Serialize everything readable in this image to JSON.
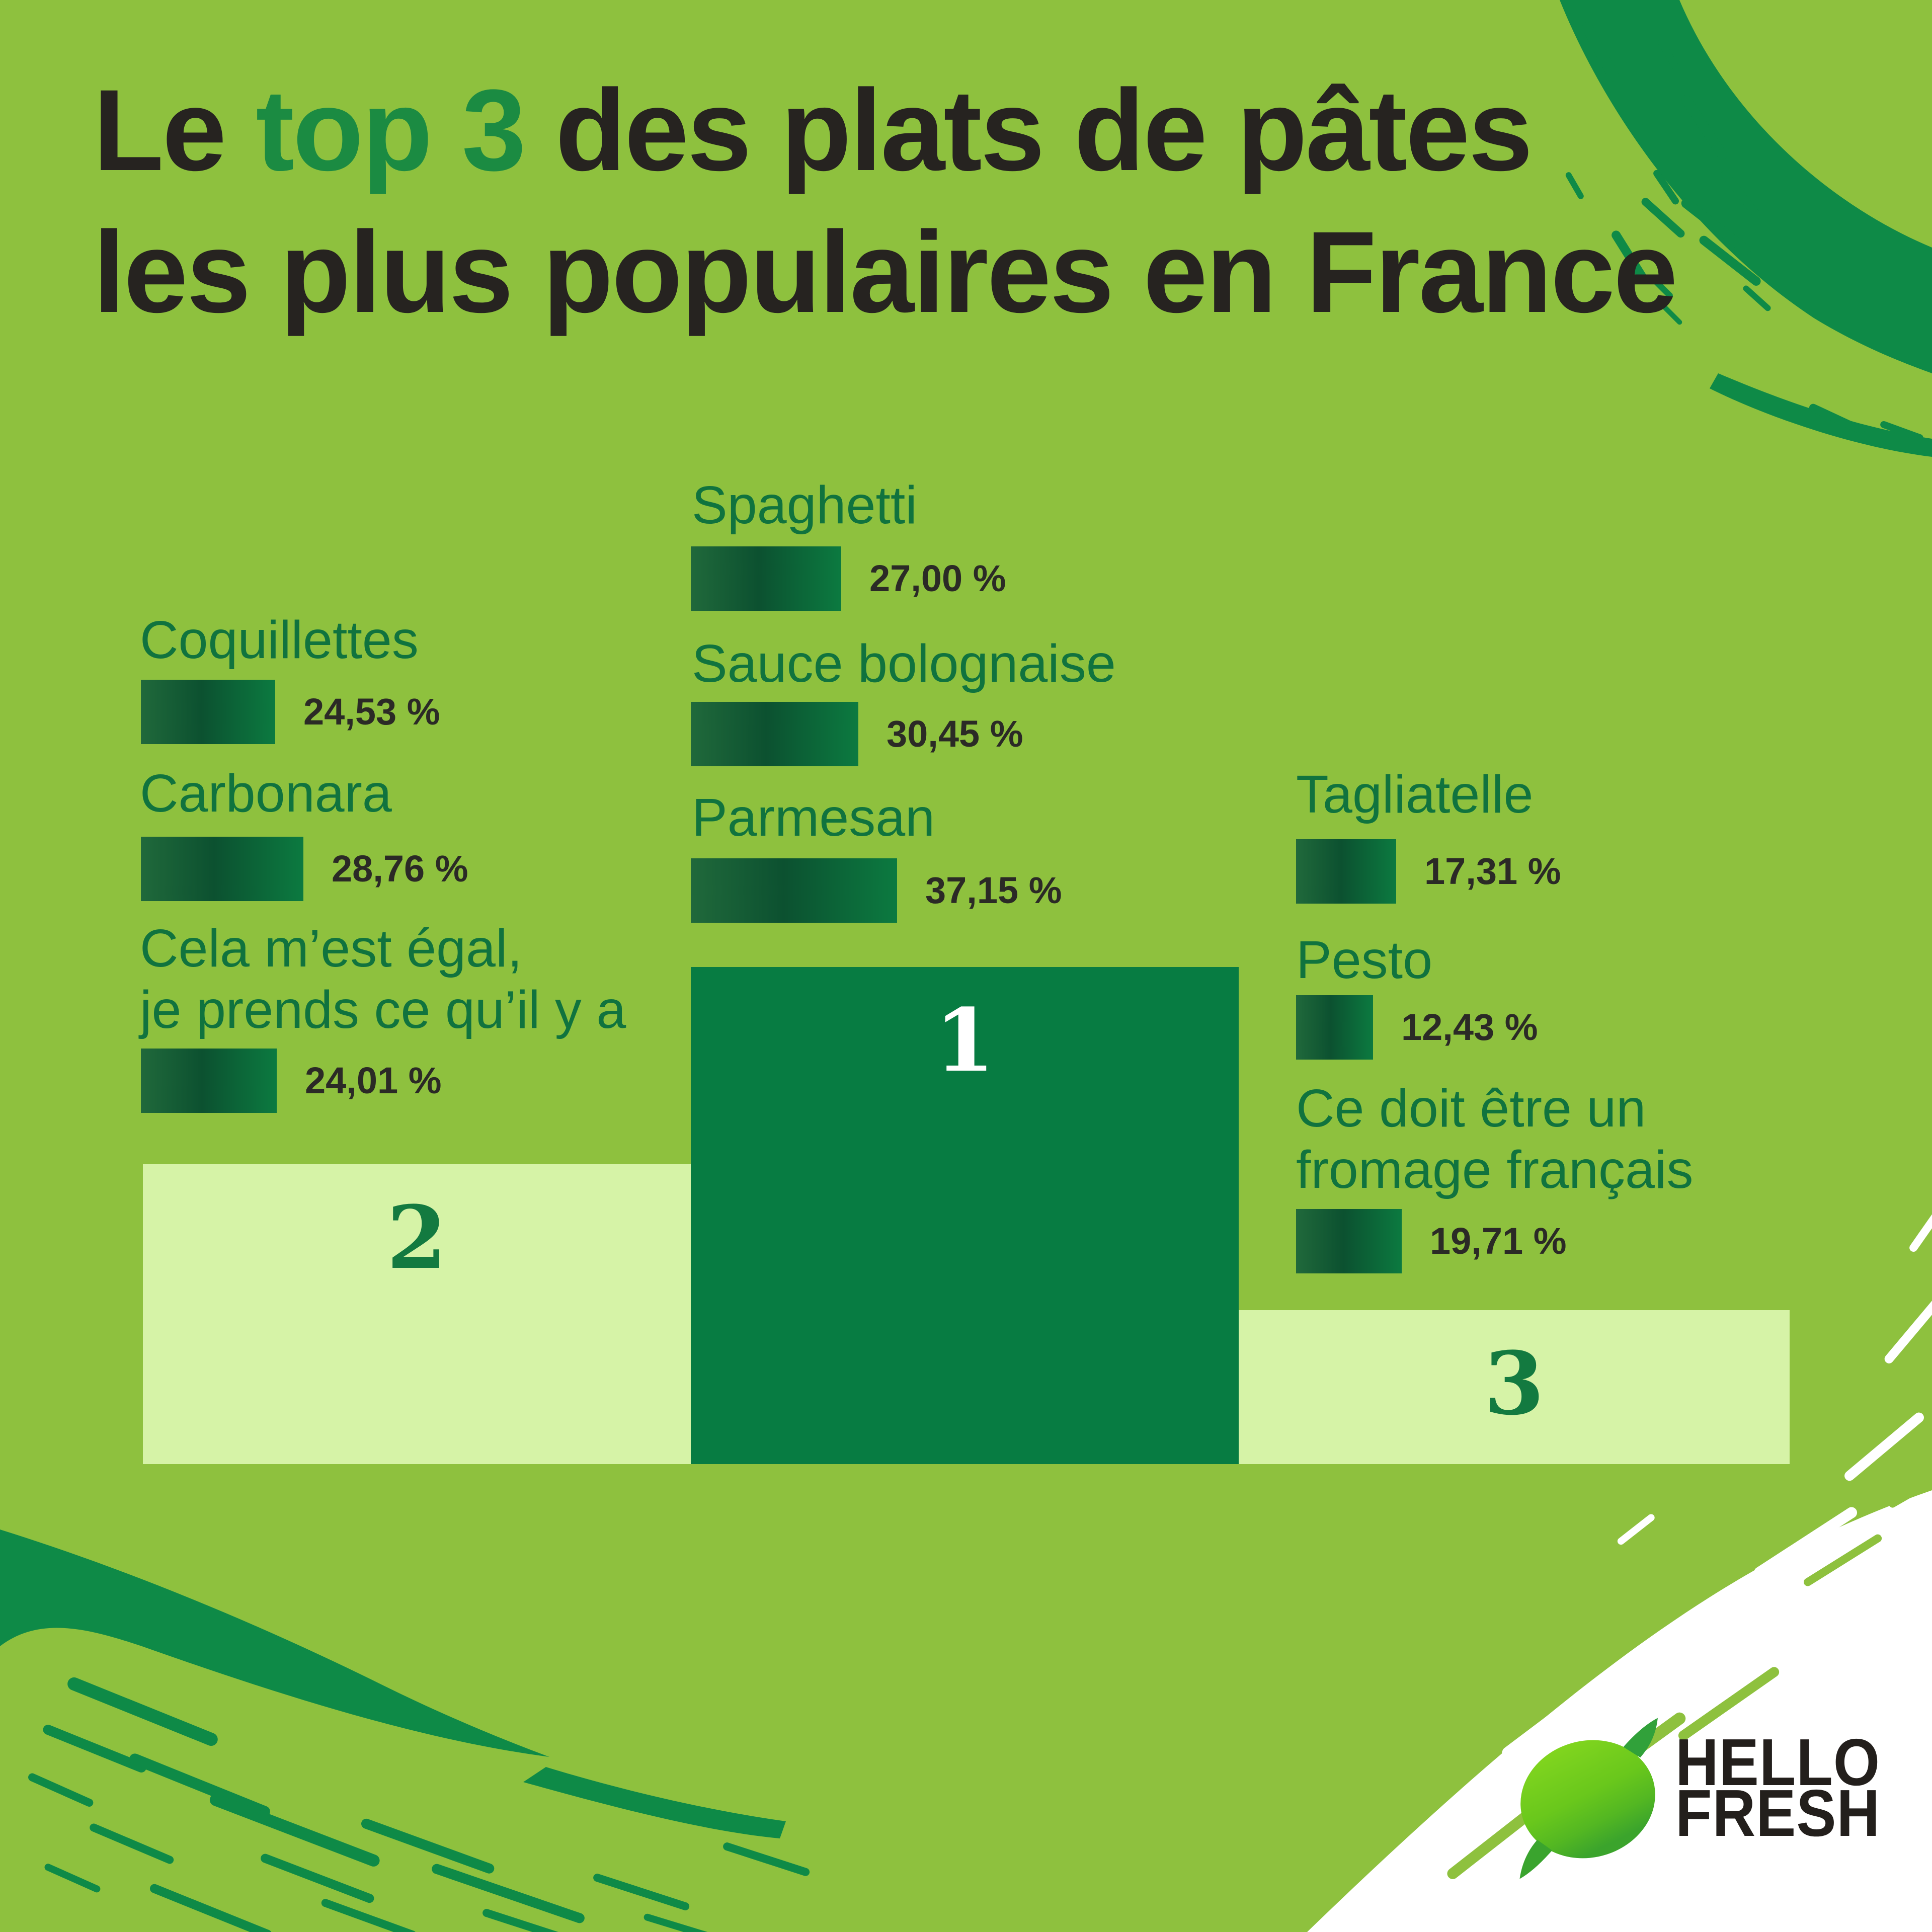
{
  "title": {
    "line1_prefix": "Le ",
    "line1_accent": "top 3",
    "line1_suffix": " des plats de pâtes",
    "line2": "les plus populaires en France"
  },
  "logo": {
    "brand_line1": "HELLO",
    "brand_line2": "FRESH",
    "icon": "lime-icon"
  },
  "colors": {
    "background": "#8ec13e",
    "brush_dark_green": "#0e8a47",
    "podium_first": "#077c42",
    "podium_light": "#d6f3a7",
    "label_green": "#10733e",
    "title_accent_green": "#1b8b42",
    "text_dark": "#2b2a26",
    "bar_gradient": [
      "#20693b",
      "#0c5130",
      "#0c7a40"
    ],
    "white_corner": "#ffffff"
  },
  "chart_data": {
    "type": "bar",
    "title": "Le top 3 des plats de pâtes les plus populaires en France",
    "unit": "%",
    "layout_hint": "three podium columns (ranks 2,1,3) each with three horizontal mini-bars; bar length proportional to value",
    "groups": [
      {
        "rank_label": "2",
        "podium_style": "light",
        "items": [
          {
            "label": "Coquillettes",
            "value": 24.53,
            "value_display": "24,53 %"
          },
          {
            "label": "Carbonara",
            "value": 28.76,
            "value_display": "28,76 %"
          },
          {
            "label": "Cela m’est égal,\nje prends ce qu’il y a",
            "value": 24.01,
            "value_display": "24,01 %"
          }
        ]
      },
      {
        "rank_label": "1",
        "podium_style": "dark",
        "items": [
          {
            "label": "Spaghetti",
            "value": 27.0,
            "value_display": "27,00 %"
          },
          {
            "label": "Sauce bolognaise",
            "value": 30.45,
            "value_display": "30,45 %"
          },
          {
            "label": "Parmesan",
            "value": 37.15,
            "value_display": "37,15 %"
          }
        ]
      },
      {
        "rank_label": "3",
        "podium_style": "light",
        "items": [
          {
            "label": "Tagliatelle",
            "value": 17.31,
            "value_display": "17,31 %"
          },
          {
            "label": "Pesto",
            "value": 12.43,
            "value_display": "12,43 %"
          },
          {
            "label": "Ce doit être un\nfromage français",
            "value": 19.71,
            "value_display": "19,71 %"
          }
        ]
      }
    ]
  }
}
